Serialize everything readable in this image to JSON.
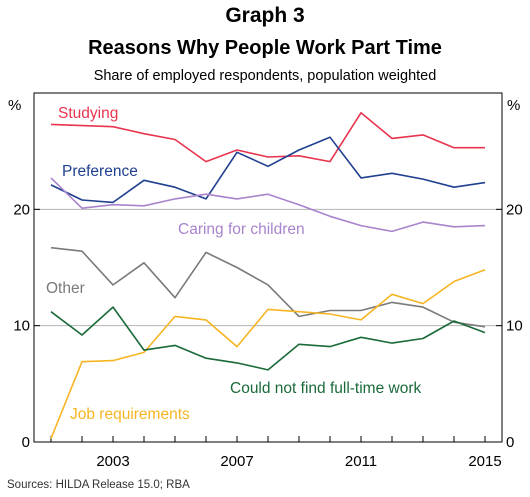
{
  "header": {
    "graph_label": "Graph 3",
    "title": "Reasons Why People Work Part Time",
    "subtitle": "Share of employed respondents, population weighted"
  },
  "footer": {
    "sources": "Sources: HILDA Release 15.0; RBA"
  },
  "chart_data": {
    "type": "line",
    "title": "Reasons Why People Work Part Time",
    "subtitle": "Share of employed respondents, population weighted",
    "ylabel_left": "%",
    "ylabel_right": "%",
    "ylim": [
      0,
      30
    ],
    "yticks": [
      0,
      10,
      20
    ],
    "xlim": [
      2001,
      2015
    ],
    "xticks": [
      2003,
      2007,
      2011,
      2015
    ],
    "grid": "horizontal at 10 and 20",
    "x": [
      2001,
      2002,
      2003,
      2004,
      2005,
      2006,
      2007,
      2008,
      2009,
      2010,
      2011,
      2012,
      2013,
      2014,
      2015
    ],
    "series": [
      {
        "name": "Studying",
        "color": "#e8344e",
        "values": [
          27.3,
          27.2,
          27.1,
          26.5,
          26.0,
          24.1,
          25.1,
          24.5,
          24.6,
          24.1,
          28.3,
          26.1,
          26.4,
          25.3,
          25.3
        ]
      },
      {
        "name": "Preference",
        "color": "#1f3f8f",
        "values": [
          22.1,
          20.8,
          20.6,
          22.5,
          21.9,
          20.9,
          24.9,
          23.7,
          25.1,
          26.2,
          22.7,
          23.1,
          22.6,
          21.9,
          22.3
        ]
      },
      {
        "name": "Caring for children",
        "color": "#a884cc",
        "values": [
          22.7,
          20.1,
          20.4,
          20.3,
          20.9,
          21.3,
          20.9,
          21.3,
          20.4,
          19.4,
          18.6,
          18.1,
          18.9,
          18.5,
          18.6
        ]
      },
      {
        "name": "Other",
        "color": "#7a7a7a",
        "values": [
          16.7,
          16.4,
          13.5,
          15.4,
          12.4,
          16.3,
          15.0,
          13.5,
          10.8,
          11.3,
          11.3,
          12.0,
          11.6,
          10.3,
          9.9
        ]
      },
      {
        "name": "Job requirements",
        "color": "#f6b522",
        "values": [
          0.3,
          6.9,
          7.0,
          7.7,
          10.8,
          10.5,
          8.2,
          11.4,
          11.2,
          11.0,
          10.5,
          12.7,
          11.9,
          13.8,
          14.8
        ]
      },
      {
        "name": "Could not find full-time work",
        "color": "#1a6a3a",
        "values": [
          11.2,
          9.2,
          11.6,
          7.9,
          8.3,
          7.2,
          6.8,
          6.2,
          8.4,
          8.2,
          9.0,
          8.5,
          8.9,
          10.4,
          9.4
        ]
      }
    ]
  }
}
